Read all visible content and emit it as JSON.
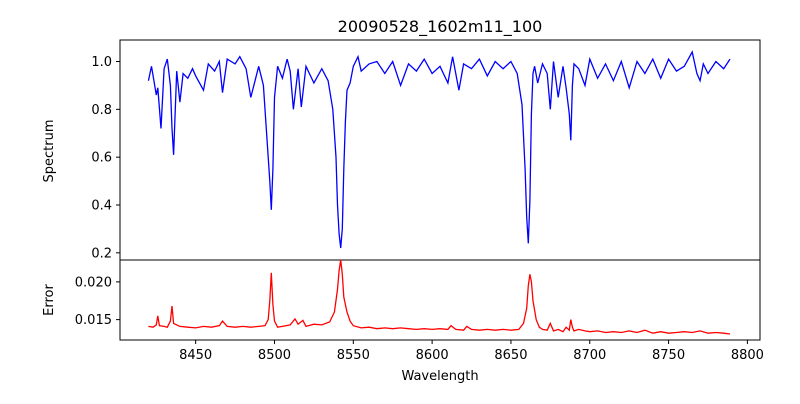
{
  "chart_data": [
    {
      "type": "line",
      "title": "20090528_1602m11_100",
      "xlabel": "",
      "ylabel": "Spectrum",
      "xlim": [
        8402,
        8808
      ],
      "ylim": [
        0.17,
        1.09
      ],
      "yticks": [
        0.2,
        0.4,
        0.6,
        0.8,
        1.0
      ],
      "ytick_labels": [
        "0.2",
        "0.4",
        "0.6",
        "0.8",
        "1.0"
      ],
      "color": "#0000ff",
      "series": [
        {
          "x": [
            8420,
            8422,
            8424,
            8425,
            8426,
            8428,
            8430,
            8432,
            8434,
            8435,
            8436,
            8438,
            8440,
            8442,
            8445,
            8448,
            8450,
            8455,
            8458,
            8462,
            8465,
            8467,
            8470,
            8475,
            8478,
            8482,
            8485,
            8490,
            8493,
            8495,
            8497,
            8498,
            8499,
            8500,
            8502,
            8505,
            8508,
            8510,
            8512,
            8515,
            8517,
            8520,
            8525,
            8530,
            8534,
            8537,
            8539,
            8540,
            8541,
            8542,
            8543,
            8544,
            8545,
            8546,
            8548,
            8550,
            8553,
            8555,
            8560,
            8565,
            8570,
            8575,
            8580,
            8585,
            8590,
            8595,
            8600,
            8605,
            8610,
            8613,
            8617,
            8620,
            8625,
            8630,
            8635,
            8640,
            8645,
            8650,
            8654,
            8657,
            8659,
            8660,
            8661,
            8662,
            8663,
            8664,
            8665,
            8667,
            8670,
            8673,
            8675,
            8677,
            8680,
            8683,
            8685,
            8687,
            8688,
            8689,
            8690,
            8693,
            8697,
            8700,
            8705,
            8710,
            8715,
            8720,
            8725,
            8730,
            8735,
            8740,
            8745,
            8750,
            8755,
            8760,
            8765,
            8768,
            8770,
            8772,
            8775,
            8780,
            8785,
            8789
          ],
          "y": [
            0.92,
            0.98,
            0.9,
            0.86,
            0.89,
            0.72,
            0.97,
            1.01,
            0.9,
            0.72,
            0.61,
            0.96,
            0.83,
            0.95,
            0.93,
            0.97,
            0.94,
            0.88,
            0.99,
            0.96,
            1.0,
            0.87,
            1.01,
            0.99,
            1.02,
            0.97,
            0.85,
            0.98,
            0.9,
            0.7,
            0.5,
            0.38,
            0.55,
            0.85,
            0.98,
            0.93,
            1.01,
            0.96,
            0.8,
            0.97,
            0.81,
            0.98,
            0.91,
            0.97,
            0.92,
            0.8,
            0.6,
            0.4,
            0.28,
            0.22,
            0.3,
            0.55,
            0.75,
            0.88,
            0.91,
            0.98,
            1.02,
            0.96,
            0.99,
            1.0,
            0.95,
            1.0,
            0.9,
            0.99,
            0.96,
            1.01,
            0.95,
            0.98,
            0.91,
            1.02,
            0.88,
            0.99,
            0.97,
            1.01,
            0.94,
            1.0,
            0.97,
            1.0,
            0.95,
            0.82,
            0.55,
            0.35,
            0.24,
            0.42,
            0.78,
            0.95,
            0.98,
            0.91,
            0.99,
            0.95,
            0.8,
            1.0,
            0.85,
            0.98,
            0.89,
            0.78,
            0.67,
            0.9,
            0.99,
            0.97,
            0.9,
            1.01,
            0.93,
            0.99,
            0.92,
            1.0,
            0.89,
            1.0,
            0.95,
            1.01,
            0.93,
            1.01,
            0.96,
            0.98,
            1.04,
            0.95,
            0.92,
            0.99,
            0.95,
            1.0,
            0.97,
            1.01
          ]
        }
      ]
    },
    {
      "type": "line",
      "title": "",
      "xlabel": "Wavelength",
      "ylabel": "Error",
      "xlim": [
        8402,
        8808
      ],
      "ylim": [
        0.0123,
        0.0229
      ],
      "yticks": [
        0.015,
        0.02
      ],
      "ytick_labels": [
        "0.015",
        "0.020"
      ],
      "xticks": [
        8450,
        8500,
        8550,
        8600,
        8650,
        8700,
        8750,
        8800
      ],
      "xtick_labels": [
        "8450",
        "8500",
        "8550",
        "8600",
        "8650",
        "8700",
        "8750",
        "8800"
      ],
      "color": "#ff0000",
      "series": [
        {
          "x": [
            8420,
            8423,
            8425,
            8426,
            8427,
            8430,
            8432,
            8434,
            8435,
            8436,
            8440,
            8445,
            8450,
            8455,
            8460,
            8465,
            8467,
            8470,
            8475,
            8480,
            8485,
            8490,
            8494,
            8496,
            8497,
            8498,
            8499,
            8500,
            8502,
            8505,
            8510,
            8513,
            8515,
            8518,
            8520,
            8525,
            8530,
            8535,
            8538,
            8540,
            8541,
            8542,
            8543,
            8544,
            8546,
            8548,
            8550,
            8555,
            8560,
            8565,
            8570,
            8575,
            8580,
            8585,
            8590,
            8595,
            8600,
            8605,
            8610,
            8612,
            8615,
            8620,
            8622,
            8625,
            8630,
            8635,
            8640,
            8645,
            8650,
            8655,
            8658,
            8660,
            8661,
            8662,
            8663,
            8664,
            8666,
            8668,
            8670,
            8673,
            8675,
            8677,
            8680,
            8683,
            8685,
            8687,
            8688,
            8689,
            8690,
            8693,
            8697,
            8700,
            8705,
            8710,
            8715,
            8720,
            8725,
            8730,
            8735,
            8740,
            8745,
            8750,
            8755,
            8760,
            8765,
            8770,
            8775,
            8780,
            8785,
            8789
          ],
          "y": [
            0.0141,
            0.014,
            0.0143,
            0.0155,
            0.0142,
            0.0141,
            0.014,
            0.0148,
            0.0168,
            0.0145,
            0.0141,
            0.014,
            0.0139,
            0.0141,
            0.014,
            0.0142,
            0.0148,
            0.0141,
            0.014,
            0.0141,
            0.014,
            0.0141,
            0.0142,
            0.015,
            0.0175,
            0.0212,
            0.017,
            0.0148,
            0.014,
            0.0141,
            0.0143,
            0.0151,
            0.0144,
            0.0149,
            0.0141,
            0.0144,
            0.0143,
            0.0147,
            0.016,
            0.019,
            0.0215,
            0.0229,
            0.021,
            0.018,
            0.016,
            0.0148,
            0.0142,
            0.0139,
            0.014,
            0.0138,
            0.0139,
            0.0138,
            0.0139,
            0.0138,
            0.0137,
            0.0138,
            0.0137,
            0.0138,
            0.0137,
            0.0142,
            0.0137,
            0.0136,
            0.0141,
            0.0137,
            0.0136,
            0.0137,
            0.0136,
            0.0137,
            0.0136,
            0.0137,
            0.0145,
            0.0165,
            0.0195,
            0.021,
            0.02,
            0.0175,
            0.015,
            0.014,
            0.0137,
            0.0136,
            0.0145,
            0.0135,
            0.0137,
            0.0134,
            0.014,
            0.0136,
            0.015,
            0.014,
            0.0135,
            0.0137,
            0.0135,
            0.0134,
            0.0135,
            0.0133,
            0.0134,
            0.0133,
            0.0135,
            0.0133,
            0.0136,
            0.0132,
            0.0134,
            0.0132,
            0.0133,
            0.0134,
            0.0133,
            0.0135,
            0.0132,
            0.0133,
            0.0132,
            0.0131
          ]
        }
      ]
    }
  ]
}
